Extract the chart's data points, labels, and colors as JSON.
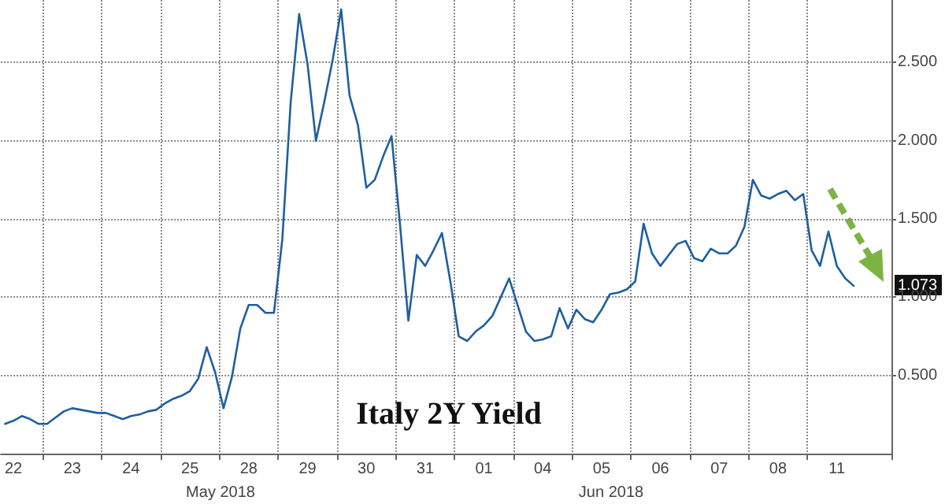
{
  "chart_data": {
    "type": "line",
    "title": "Italy 2Y Yield",
    "categories": [
      null,
      "22",
      null,
      null,
      null,
      null,
      null,
      null,
      "23",
      null,
      null,
      null,
      null,
      null,
      null,
      "24",
      null,
      null,
      null,
      null,
      null,
      null,
      "25",
      null,
      null,
      null,
      null,
      null,
      null,
      "28",
      null,
      null,
      null,
      null,
      null,
      null,
      "29",
      null,
      null,
      null,
      null,
      null,
      null,
      "30",
      null,
      null,
      null,
      null,
      null,
      null,
      "31",
      null,
      null,
      null,
      null,
      null,
      null,
      "01",
      null,
      null,
      null,
      null,
      null,
      null,
      "04",
      null,
      null,
      null,
      null,
      null,
      null,
      "05",
      null,
      null,
      null,
      null,
      null,
      null,
      "06",
      null,
      null,
      null,
      null,
      null,
      null,
      "07",
      null,
      null,
      null,
      null,
      null,
      null,
      "08",
      null,
      null,
      null,
      null,
      null,
      null,
      "11",
      null,
      null,
      null,
      null,
      null,
      null
    ],
    "series": [
      {
        "color": "#1f5f9f",
        "values": [
          0.19,
          0.21,
          0.24,
          0.22,
          0.19,
          0.19,
          0.23,
          0.27,
          0.29,
          0.28,
          0.27,
          0.26,
          0.26,
          0.24,
          0.22,
          0.24,
          0.25,
          0.27,
          0.28,
          0.32,
          0.35,
          0.37,
          0.4,
          0.48,
          0.68,
          0.52,
          0.29,
          0.49,
          0.8,
          0.95,
          0.95,
          0.9,
          0.9,
          1.37,
          2.25,
          2.81,
          2.49,
          2.0,
          2.25,
          2.52,
          2.84,
          2.29,
          2.1,
          1.7,
          1.75,
          1.9,
          2.03,
          1.47,
          0.85,
          1.27,
          1.2,
          1.3,
          1.41,
          1.1,
          0.75,
          0.72,
          0.78,
          0.82,
          0.88,
          1.0,
          1.12,
          0.95,
          0.78,
          0.72,
          0.73,
          0.75,
          0.93,
          0.8,
          0.92,
          0.86,
          0.84,
          0.92,
          1.02,
          1.03,
          1.05,
          1.1,
          1.47,
          1.28,
          1.2,
          1.27,
          1.34,
          1.36,
          1.25,
          1.23,
          1.31,
          1.28,
          1.28,
          1.33,
          1.45,
          1.75,
          1.65,
          1.63,
          1.66,
          1.68,
          1.62,
          1.66,
          1.3,
          1.2,
          1.42,
          1.2,
          1.12,
          1.073,
          null,
          null,
          null,
          null
        ]
      }
    ],
    "ylim": [
      0,
      2.9
    ],
    "yticks": [
      {
        "value": 0.5,
        "label": "0.500"
      },
      {
        "value": 1,
        "label": "1.000"
      },
      {
        "value": 1.5,
        "label": "1.500"
      },
      {
        "value": 2,
        "label": "2.000"
      },
      {
        "value": 2.5,
        "label": "2.500"
      }
    ],
    "annotations": [
      "May 2018",
      "Jun 2018",
      {
        "text": "1.073",
        "y": 1.073
      }
    ],
    "grid": true,
    "marker": "none",
    "line_style": "solid"
  }
}
